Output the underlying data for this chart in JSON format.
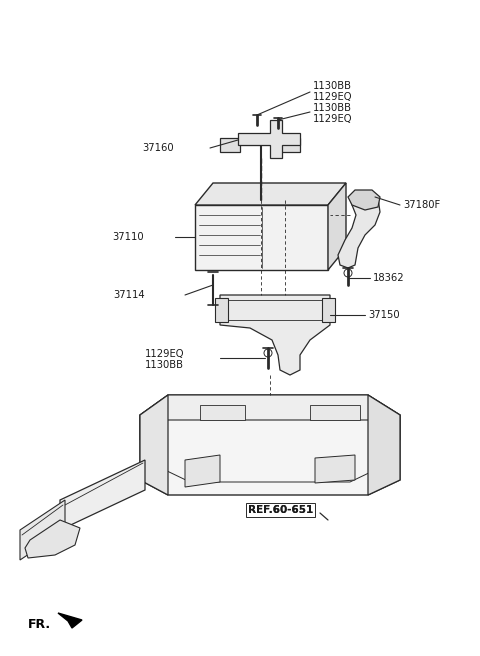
{
  "bg_color": "#ffffff",
  "line_color": "#2a2a2a",
  "text_color": "#1a1a1a",
  "figsize": [
    4.8,
    6.56
  ],
  "dpi": 100,
  "xlim": [
    0,
    480
  ],
  "ylim": [
    0,
    656
  ]
}
